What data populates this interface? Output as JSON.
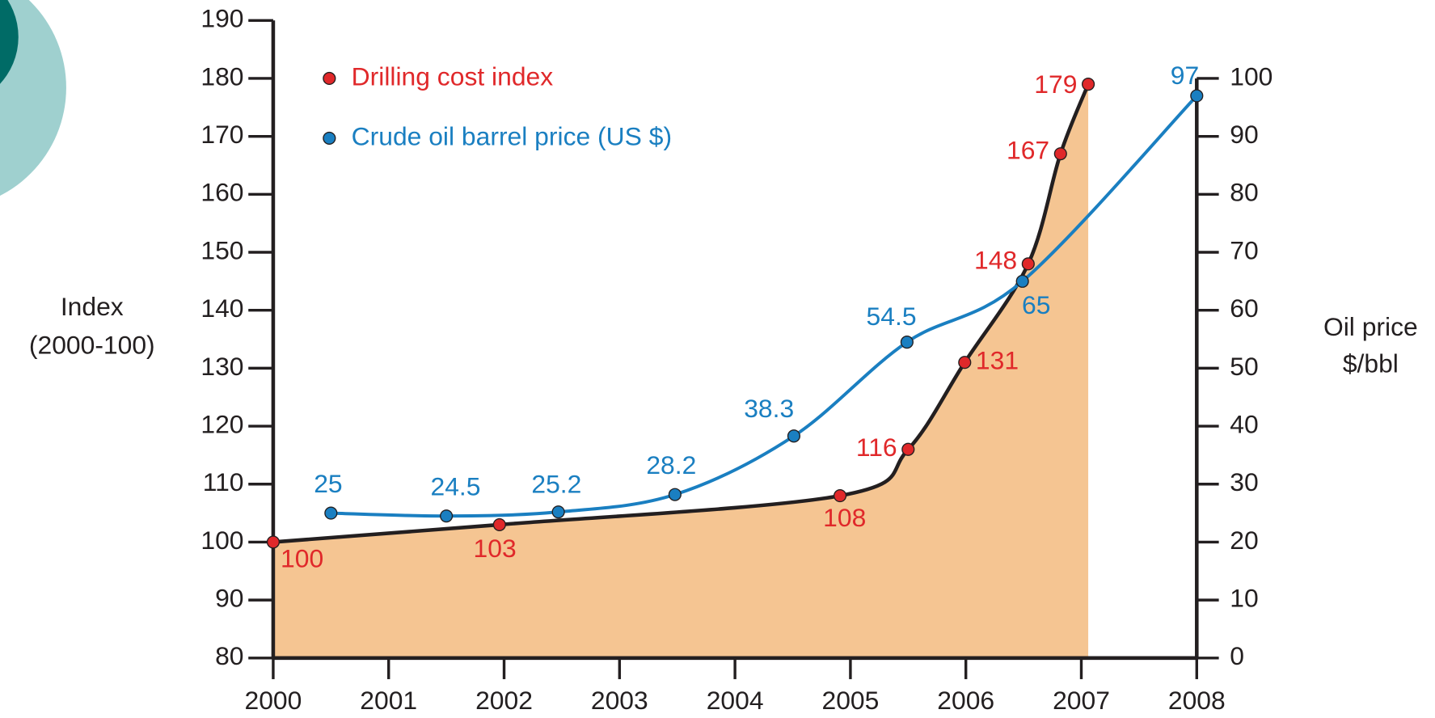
{
  "chart_data": {
    "type": "line",
    "ylabel": [
      "Index",
      "(2000-100)"
    ],
    "y2label": [
      "Oil price",
      "$/bbl"
    ],
    "xlim": [
      2000,
      2008
    ],
    "xticks": [
      2000,
      2001,
      2002,
      2003,
      2004,
      2005,
      2006,
      2007,
      2008
    ],
    "ylim": [
      80,
      190
    ],
    "yticks": [
      80,
      90,
      100,
      110,
      120,
      130,
      140,
      150,
      160,
      170,
      180,
      190
    ],
    "y2lim": [
      0,
      100
    ],
    "y2ticks": [
      0,
      10,
      20,
      30,
      40,
      50,
      60,
      70,
      80,
      90,
      100
    ],
    "legend": "top-left",
    "series": [
      {
        "name": "Drilling cost index",
        "color": "#e0282a",
        "area_color": "#f5c592",
        "line_color": "#231f20",
        "x": [
          2000,
          2001.96,
          2004.91,
          2005.5,
          2005.99,
          2006.54,
          2006.82,
          2007.06
        ],
        "values": [
          100,
          103,
          108,
          116,
          131,
          148,
          167,
          179
        ]
      },
      {
        "name": "Crude oil barrel price (US $)",
        "color": "#1a7fc1",
        "axis": "y2",
        "x": [
          2000.5,
          2001.5,
          2002.47,
          2003.48,
          2004.51,
          2005.49,
          2006.49,
          2008
        ],
        "values": [
          25,
          24.5,
          25.2,
          28.2,
          38.3,
          54.5,
          65,
          97
        ]
      }
    ]
  }
}
